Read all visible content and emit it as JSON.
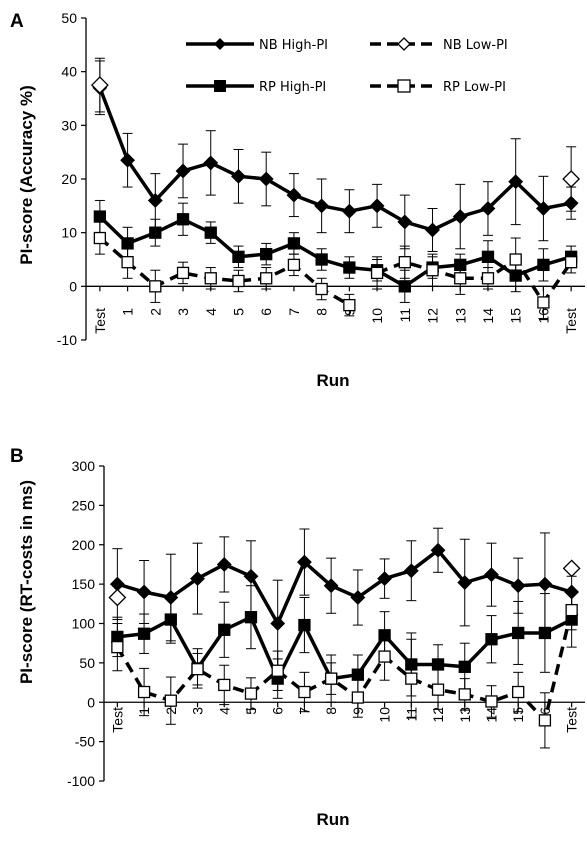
{
  "chart_data": [
    {
      "panel": "A",
      "type": "line",
      "ylabel": "PI-score (Accuracy %)",
      "xlabel": "Run",
      "ylim": [
        -10,
        50
      ],
      "yticks": [
        "-10",
        "0",
        "10",
        "20",
        "30",
        "40",
        "50"
      ],
      "categories": [
        "Test",
        "1",
        "2",
        "3",
        "4",
        "5",
        "6",
        "7",
        "8",
        "9",
        "10",
        "11",
        "12",
        "13",
        "14",
        "15",
        "16",
        "Test"
      ],
      "legend_position": "top",
      "series": [
        {
          "name": "NB High-PI",
          "marker": "diamond",
          "filled": true,
          "dashed": false,
          "color": "#000000",
          "values": [
            37,
            23.5,
            16,
            21.5,
            23,
            20.5,
            20,
            17,
            15,
            14,
            15,
            12,
            10.5,
            13,
            14.5,
            19.5,
            14.5,
            15.5
          ],
          "errors": [
            5,
            5,
            5,
            5,
            6,
            5,
            5,
            4,
            5,
            4,
            4,
            5,
            4,
            6,
            5,
            8,
            6,
            3
          ]
        },
        {
          "name": "NB Low-PI",
          "marker": "diamond",
          "filled": false,
          "dashed": true,
          "color": "#000000",
          "points": [
            {
              "x": 0,
              "y": 37.5
            },
            {
              "x": 17,
              "y": 20
            }
          ],
          "errors": [
            5,
            6
          ]
        },
        {
          "name": "RP High-PI",
          "marker": "square",
          "filled": true,
          "dashed": false,
          "color": "#000000",
          "values": [
            13,
            8,
            10,
            12.5,
            10,
            5.5,
            6,
            8,
            5,
            3.5,
            3,
            0,
            3.5,
            4,
            5.5,
            2,
            4,
            5.5
          ],
          "errors": [
            3,
            3,
            2.5,
            3,
            2,
            2,
            2,
            2,
            2,
            2,
            2,
            3,
            2,
            2,
            3,
            3,
            3,
            2
          ]
        },
        {
          "name": "RP Low-PI",
          "marker": "square",
          "filled": false,
          "dashed": true,
          "color": "#000000",
          "values": [
            9,
            4.5,
            0,
            2.5,
            1.5,
            1,
            1.5,
            4,
            -0.5,
            -3.5,
            2.5,
            4.5,
            3,
            1.5,
            1.5,
            5,
            -3,
            4.5
          ],
          "errors": [
            3,
            3,
            3,
            2,
            2,
            2,
            2,
            2,
            2,
            2,
            3,
            3,
            3,
            3,
            2,
            4,
            3,
            2
          ],
          "breaks_after": [
            9
          ]
        }
      ]
    },
    {
      "panel": "B",
      "type": "line",
      "ylabel": "PI-score (RT-costs in ms)",
      "xlabel": "Run",
      "ylim": [
        -100,
        300
      ],
      "yticks": [
        "-100",
        "-50",
        "0",
        "50",
        "100",
        "150",
        "200",
        "250",
        "300"
      ],
      "categories": [
        "Test",
        "1",
        "2",
        "3",
        "4",
        "5",
        "6",
        "7",
        "8",
        "9",
        "10",
        "11",
        "12",
        "13",
        "14",
        "15",
        "16",
        "Test"
      ],
      "series": [
        {
          "name": "NB High-PI",
          "marker": "diamond",
          "filled": true,
          "dashed": false,
          "color": "#000000",
          "values": [
            150,
            140,
            133,
            157,
            175,
            160,
            100,
            178,
            148,
            133,
            157,
            167,
            193,
            152,
            162,
            148,
            150,
            140
          ],
          "errors": [
            45,
            40,
            55,
            45,
            35,
            45,
            55,
            42,
            35,
            35,
            25,
            38,
            28,
            55,
            40,
            35,
            65,
            20
          ]
        },
        {
          "name": "NB Low-PI",
          "marker": "diamond",
          "filled": false,
          "dashed": true,
          "color": "#000000",
          "points": [
            {
              "x": 0,
              "y": 133
            },
            {
              "x": 17,
              "y": 170
            }
          ],
          "errors": [
            0,
            0
          ]
        },
        {
          "name": "RP High-PI",
          "marker": "square",
          "filled": true,
          "dashed": false,
          "color": "#000000",
          "values": [
            83,
            87,
            105,
            43,
            92,
            108,
            30,
            98,
            30,
            35,
            85,
            48,
            48,
            45,
            80,
            88,
            88,
            105
          ],
          "errors": [
            25,
            25,
            30,
            25,
            35,
            40,
            25,
            35,
            30,
            25,
            30,
            40,
            25,
            30,
            30,
            40,
            50,
            35
          ]
        },
        {
          "name": "RP Low-PI",
          "marker": "square",
          "filled": false,
          "dashed": true,
          "color": "#000000",
          "values": [
            70,
            13,
            2,
            42,
            22,
            11,
            40,
            13,
            30,
            6,
            58,
            30,
            16,
            10,
            1,
            13,
            -23,
            117
          ],
          "errors": [
            30,
            30,
            30,
            20,
            25,
            20,
            25,
            25,
            20,
            25,
            30,
            50,
            25,
            20,
            20,
            25,
            35,
            25
          ]
        }
      ]
    }
  ]
}
